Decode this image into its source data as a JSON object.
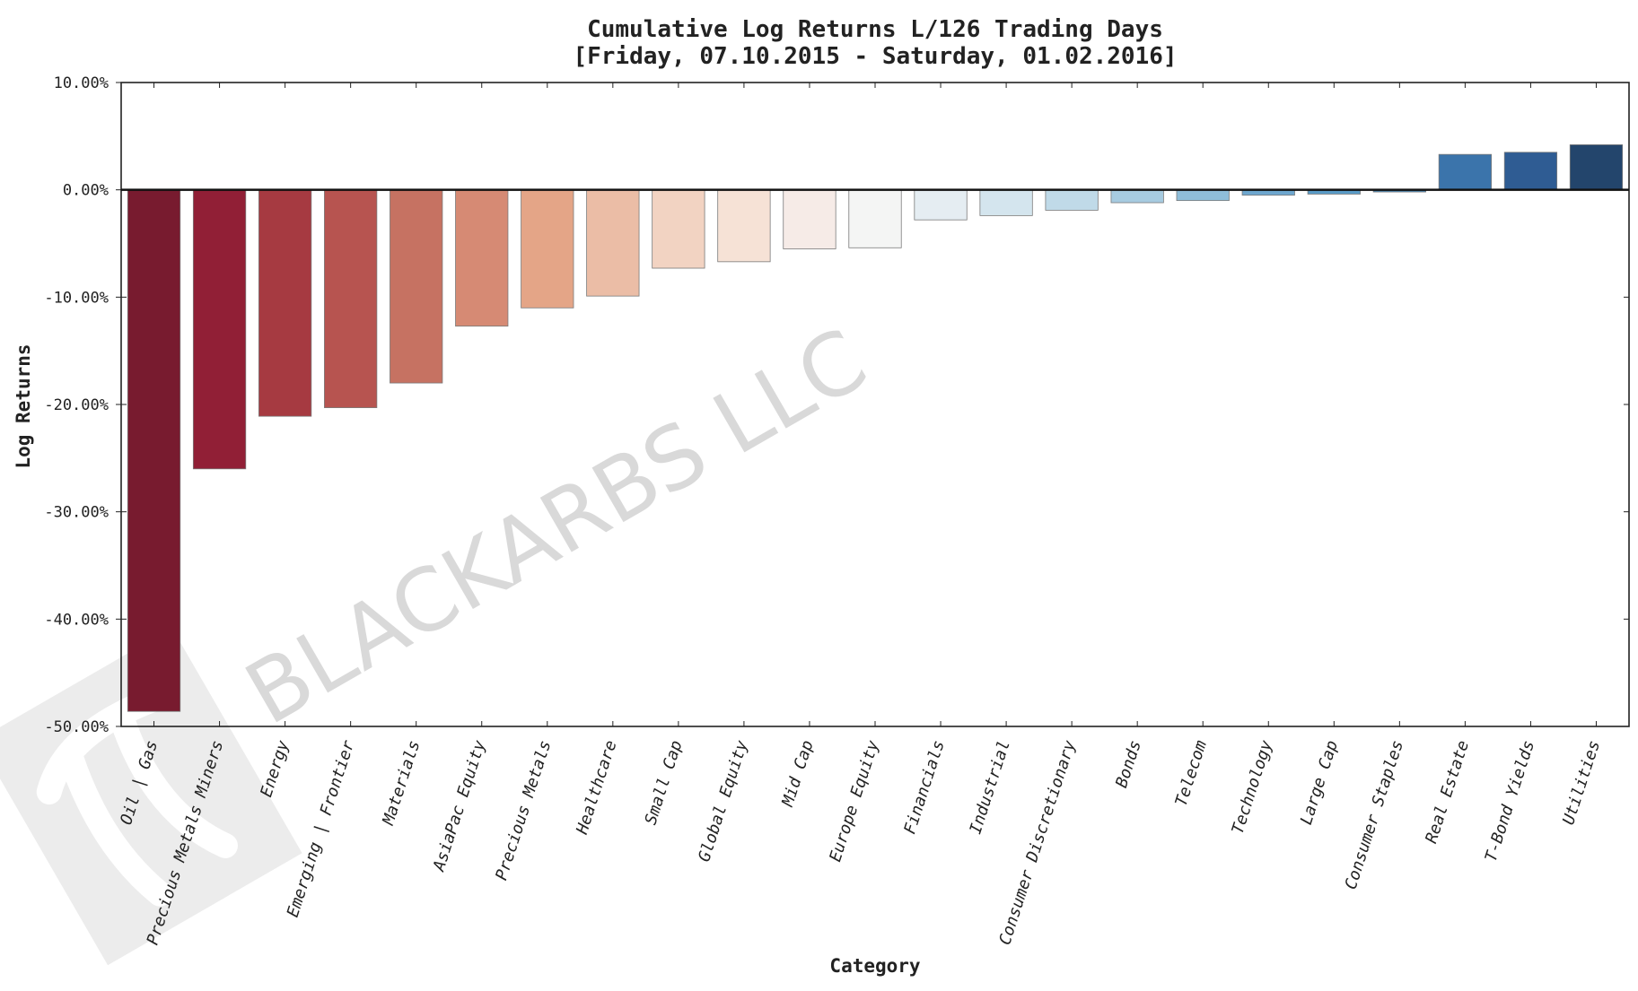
{
  "chart_data": {
    "type": "bar",
    "title": "Cumulative Log Returns L/126 Trading Days",
    "subtitle": "[Friday, 07.10.2015 - Saturday, 01.02.2016]",
    "xlabel": "Category",
    "ylabel": "Log Returns",
    "ylim": [
      -50,
      10
    ],
    "yticks": [
      "10.00%",
      "0.00%",
      "-10.00%",
      "-20.00%",
      "-30.00%",
      "-40.00%",
      "-50.00%"
    ],
    "grid": false,
    "categories": [
      "Oil | Gas",
      "Precious Metals Miners",
      "Energy",
      "Emerging | Frontier",
      "Materials",
      "AsiaPac Equity",
      "Precious Metals",
      "Healthcare",
      "Small Cap",
      "Global Equity",
      "Mid Cap",
      "Europe Equity",
      "Financials",
      "Industrial",
      "Consumer Discretionary",
      "Bonds",
      "Telecom",
      "Technology",
      "Large Cap",
      "Consumer Staples",
      "Real Estate",
      "T-Bond Yields",
      "Utilities"
    ],
    "values": [
      -48.6,
      -26.0,
      -21.1,
      -20.3,
      -18.0,
      -12.7,
      -11.0,
      -9.9,
      -7.3,
      -6.7,
      -5.5,
      -5.4,
      -2.8,
      -2.4,
      -1.9,
      -1.2,
      -1.0,
      -0.5,
      -0.4,
      -0.2,
      3.3,
      3.5,
      4.2
    ],
    "colors": [
      "#781b2f",
      "#911f36",
      "#a63a41",
      "#b75450",
      "#c67262",
      "#d68a74",
      "#e4a587",
      "#ebbda6",
      "#f2d3c2",
      "#f6e2d6",
      "#f6ebe7",
      "#f4f5f4",
      "#e5edf2",
      "#d4e5ee",
      "#c0dae8",
      "#a7cbe0",
      "#8fbdd9",
      "#6ea7cf",
      "#5a9bc7",
      "#4a8cbc",
      "#3b74ab",
      "#2f5c93",
      "#23456c"
    ],
    "watermark": "BLACKARBS LLC"
  }
}
